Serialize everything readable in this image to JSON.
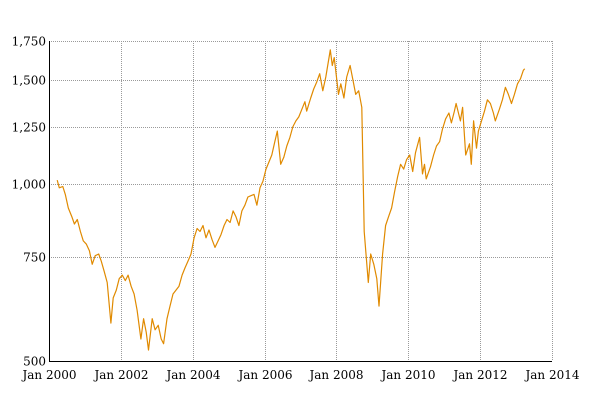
{
  "chart_data": {
    "type": "line",
    "title": "",
    "xlabel": "",
    "ylabel": "",
    "y_scale": "log",
    "grid": true,
    "legend": "none",
    "xlim": [
      "2000-01-01",
      "2014-01-01"
    ],
    "ylim": [
      500,
      1750
    ],
    "x_ticks": [
      "2000-01-01",
      "2002-01-01",
      "2004-01-01",
      "2006-01-01",
      "2008-01-01",
      "2010-01-01",
      "2012-01-01",
      "2014-01-01"
    ],
    "x_tick_labels": [
      "Jan 2000",
      "Jan 2002",
      "Jan 2004",
      "Jan 2006",
      "Jan 2008",
      "Jan 2010",
      "Jan 2012",
      "Jan 2014"
    ],
    "y_ticks": [
      500,
      750,
      1000,
      1250,
      1500,
      1750
    ],
    "y_tick_labels": [
      "500",
      "750",
      "1,000",
      "1,250",
      "1,500",
      "1,750"
    ],
    "series": [
      {
        "color": "#e08a00",
        "points": [
          [
            "2000-03-24",
            1015
          ],
          [
            "2000-04-15",
            985
          ],
          [
            "2000-05-20",
            990
          ],
          [
            "2000-06-15",
            960
          ],
          [
            "2000-07-15",
            910
          ],
          [
            "2000-08-20",
            880
          ],
          [
            "2000-09-15",
            855
          ],
          [
            "2000-10-15",
            870
          ],
          [
            "2000-11-15",
            830
          ],
          [
            "2000-12-15",
            800
          ],
          [
            "2001-01-15",
            790
          ],
          [
            "2001-02-15",
            770
          ],
          [
            "2001-03-15",
            730
          ],
          [
            "2001-04-15",
            755
          ],
          [
            "2001-05-20",
            760
          ],
          [
            "2001-06-15",
            740
          ],
          [
            "2001-07-15",
            710
          ],
          [
            "2001-08-15",
            680
          ],
          [
            "2001-09-21",
            580
          ],
          [
            "2001-10-15",
            640
          ],
          [
            "2001-11-15",
            660
          ],
          [
            "2001-12-15",
            690
          ],
          [
            "2002-01-15",
            700
          ],
          [
            "2002-02-15",
            685
          ],
          [
            "2002-03-15",
            700
          ],
          [
            "2002-04-15",
            670
          ],
          [
            "2002-05-15",
            650
          ],
          [
            "2002-06-15",
            610
          ],
          [
            "2002-07-23",
            545
          ],
          [
            "2002-08-20",
            590
          ],
          [
            "2002-09-15",
            560
          ],
          [
            "2002-10-09",
            522
          ],
          [
            "2002-11-15",
            590
          ],
          [
            "2002-12-15",
            565
          ],
          [
            "2003-01-15",
            575
          ],
          [
            "2003-02-15",
            545
          ],
          [
            "2003-03-11",
            535
          ],
          [
            "2003-04-15",
            590
          ],
          [
            "2003-05-15",
            620
          ],
          [
            "2003-06-15",
            650
          ],
          [
            "2003-07-15",
            660
          ],
          [
            "2003-08-15",
            670
          ],
          [
            "2003-09-15",
            700
          ],
          [
            "2003-10-15",
            720
          ],
          [
            "2003-11-15",
            740
          ],
          [
            "2003-12-15",
            760
          ],
          [
            "2004-01-15",
            810
          ],
          [
            "2004-02-15",
            840
          ],
          [
            "2004-03-15",
            830
          ],
          [
            "2004-04-15",
            850
          ],
          [
            "2004-05-15",
            810
          ],
          [
            "2004-06-15",
            835
          ],
          [
            "2004-07-15",
            805
          ],
          [
            "2004-08-15",
            780
          ],
          [
            "2004-09-15",
            800
          ],
          [
            "2004-10-15",
            820
          ],
          [
            "2004-11-15",
            850
          ],
          [
            "2004-12-15",
            870
          ],
          [
            "2005-01-15",
            860
          ],
          [
            "2005-02-15",
            900
          ],
          [
            "2005-03-15",
            880
          ],
          [
            "2005-04-15",
            850
          ],
          [
            "2005-05-15",
            900
          ],
          [
            "2005-06-15",
            920
          ],
          [
            "2005-07-15",
            950
          ],
          [
            "2005-08-15",
            955
          ],
          [
            "2005-09-15",
            960
          ],
          [
            "2005-10-15",
            920
          ],
          [
            "2005-11-15",
            985
          ],
          [
            "2005-12-15",
            1010
          ],
          [
            "2006-01-15",
            1060
          ],
          [
            "2006-02-15",
            1090
          ],
          [
            "2006-03-15",
            1120
          ],
          [
            "2006-04-15",
            1180
          ],
          [
            "2006-05-10",
            1230
          ],
          [
            "2006-06-14",
            1080
          ],
          [
            "2006-07-15",
            1110
          ],
          [
            "2006-08-15",
            1160
          ],
          [
            "2006-09-15",
            1200
          ],
          [
            "2006-10-15",
            1250
          ],
          [
            "2006-11-15",
            1280
          ],
          [
            "2006-12-15",
            1300
          ],
          [
            "2007-01-15",
            1340
          ],
          [
            "2007-02-15",
            1380
          ],
          [
            "2007-03-05",
            1330
          ],
          [
            "2007-04-15",
            1400
          ],
          [
            "2007-05-15",
            1450
          ],
          [
            "2007-06-15",
            1490
          ],
          [
            "2007-07-15",
            1540
          ],
          [
            "2007-08-16",
            1440
          ],
          [
            "2007-09-15",
            1520
          ],
          [
            "2007-10-31",
            1690
          ],
          [
            "2007-11-20",
            1590
          ],
          [
            "2007-12-10",
            1640
          ],
          [
            "2008-01-22",
            1420
          ],
          [
            "2008-02-15",
            1480
          ],
          [
            "2008-03-17",
            1400
          ],
          [
            "2008-04-15",
            1520
          ],
          [
            "2008-05-19",
            1590
          ],
          [
            "2008-06-15",
            1510
          ],
          [
            "2008-07-15",
            1420
          ],
          [
            "2008-08-15",
            1440
          ],
          [
            "2008-09-15",
            1350
          ],
          [
            "2008-10-10",
            830
          ],
          [
            "2008-10-28",
            760
          ],
          [
            "2008-11-20",
            680
          ],
          [
            "2008-12-15",
            760
          ],
          [
            "2009-01-15",
            730
          ],
          [
            "2009-02-15",
            690
          ],
          [
            "2009-03-09",
            620
          ],
          [
            "2009-04-15",
            760
          ],
          [
            "2009-05-15",
            850
          ],
          [
            "2009-06-15",
            880
          ],
          [
            "2009-07-15",
            910
          ],
          [
            "2009-08-15",
            970
          ],
          [
            "2009-09-15",
            1030
          ],
          [
            "2009-10-15",
            1080
          ],
          [
            "2009-11-15",
            1060
          ],
          [
            "2009-12-15",
            1100
          ],
          [
            "2010-01-15",
            1120
          ],
          [
            "2010-02-15",
            1050
          ],
          [
            "2010-03-15",
            1130
          ],
          [
            "2010-04-26",
            1200
          ],
          [
            "2010-05-25",
            1040
          ],
          [
            "2010-06-15",
            1080
          ],
          [
            "2010-07-02",
            1020
          ],
          [
            "2010-08-15",
            1070
          ],
          [
            "2010-09-15",
            1120
          ],
          [
            "2010-10-15",
            1160
          ],
          [
            "2010-11-15",
            1180
          ],
          [
            "2010-12-15",
            1240
          ],
          [
            "2011-01-15",
            1290
          ],
          [
            "2011-02-18",
            1320
          ],
          [
            "2011-03-15",
            1270
          ],
          [
            "2011-04-15",
            1330
          ],
          [
            "2011-05-02",
            1370
          ],
          [
            "2011-06-15",
            1280
          ],
          [
            "2011-07-07",
            1350
          ],
          [
            "2011-08-08",
            1120
          ],
          [
            "2011-09-15",
            1170
          ],
          [
            "2011-10-04",
            1080
          ],
          [
            "2011-10-27",
            1280
          ],
          [
            "2011-11-25",
            1150
          ],
          [
            "2011-12-15",
            1230
          ],
          [
            "2012-01-15",
            1280
          ],
          [
            "2012-02-15",
            1330
          ],
          [
            "2012-03-15",
            1390
          ],
          [
            "2012-04-15",
            1370
          ],
          [
            "2012-05-15",
            1320
          ],
          [
            "2012-06-04",
            1280
          ],
          [
            "2012-07-15",
            1340
          ],
          [
            "2012-08-15",
            1390
          ],
          [
            "2012-09-14",
            1460
          ],
          [
            "2012-10-15",
            1420
          ],
          [
            "2012-11-15",
            1370
          ],
          [
            "2012-12-15",
            1420
          ],
          [
            "2013-01-15",
            1480
          ],
          [
            "2013-02-15",
            1510
          ],
          [
            "2013-03-15",
            1560
          ],
          [
            "2013-03-29",
            1570
          ]
        ]
      }
    ]
  }
}
